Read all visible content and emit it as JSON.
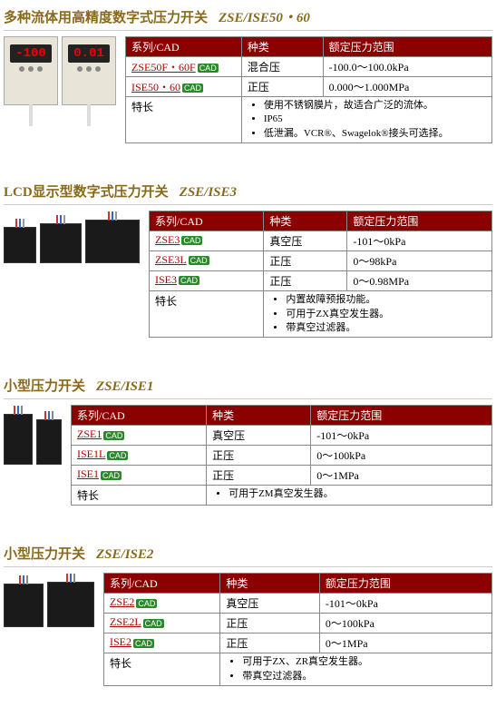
{
  "sections": [
    {
      "title_cn": "多种流体用高精度数字式压力开关",
      "title_en": "ZSE/ISE50・60",
      "image_style": "digital",
      "columns": [
        "系列/CAD",
        "种类",
        "额定压力范围"
      ],
      "rows": [
        {
          "series": "ZSE50F・60F",
          "badge": "CAD",
          "type": "混合压",
          "range": "-100.0～100.0kPa"
        },
        {
          "series": "ISE50・60",
          "badge": "CAD",
          "type": "正压",
          "range": "0.000～1.000MPa"
        }
      ],
      "feature_label": "特长",
      "features": [
        "使用不锈钢膜片，故适合广泛的流体。",
        "IP65",
        "低泄漏。VCR®、Swagelok®接头可选择。"
      ]
    },
    {
      "title_cn": "LCD显示型数字式压力开关",
      "title_en": "ZSE/ISE3",
      "image_style": "lcd_group",
      "columns": [
        "系列/CAD",
        "种类",
        "额定压力范围"
      ],
      "rows": [
        {
          "series": "ZSE3",
          "badge": "CAD",
          "type": "真空压",
          "range": "-101～0kPa"
        },
        {
          "series": "ZSE3L",
          "badge": "CAD",
          "type": "正压",
          "range": "0～98kPa"
        },
        {
          "series": "ISE3",
          "badge": "CAD",
          "type": "正压",
          "range": "0～0.98MPa"
        }
      ],
      "feature_label": "特长",
      "features": [
        "内置故障预报功能。",
        "可用于ZX真空发生器。",
        "带真空过滤器。"
      ]
    },
    {
      "title_cn": "小型压力开关",
      "title_en": "ZSE/ISE1",
      "image_style": "small_pair",
      "columns": [
        "系列/CAD",
        "种类",
        "额定压力范围"
      ],
      "rows": [
        {
          "series": "ZSE1",
          "badge": "CAD",
          "type": "真空压",
          "range": "-101～0kPa"
        },
        {
          "series": "ISE1L",
          "badge": "CAD",
          "type": "正压",
          "range": "0～100kPa"
        },
        {
          "series": "ISE1",
          "badge": "CAD",
          "type": "正压",
          "range": "0～1MPa"
        }
      ],
      "feature_label": "特长",
      "features": [
        "可用于ZM真空发生器。"
      ]
    },
    {
      "title_cn": "小型压力开关",
      "title_en": "ZSE/ISE2",
      "image_style": "small_ise2",
      "columns": [
        "系列/CAD",
        "种类",
        "额定压力范围"
      ],
      "rows": [
        {
          "series": "ZSE2",
          "badge": "CAD",
          "type": "真空压",
          "range": "-101～0kPa"
        },
        {
          "series": "ZSE2L",
          "badge": "CAD",
          "type": "正压",
          "range": "0～100kPa"
        },
        {
          "series": "ISE2",
          "badge": "CAD",
          "type": "正压",
          "range": "0～1MPa"
        }
      ],
      "feature_label": "特长",
      "features": [
        "可用于ZX、ZR真空发生器。",
        "带真空过滤器。"
      ]
    }
  ],
  "colors": {
    "header_bg": "#8b0000",
    "link_color": "#b00000",
    "badge_bg": "#2a8a2a",
    "title_color": "#8a6a1a"
  }
}
